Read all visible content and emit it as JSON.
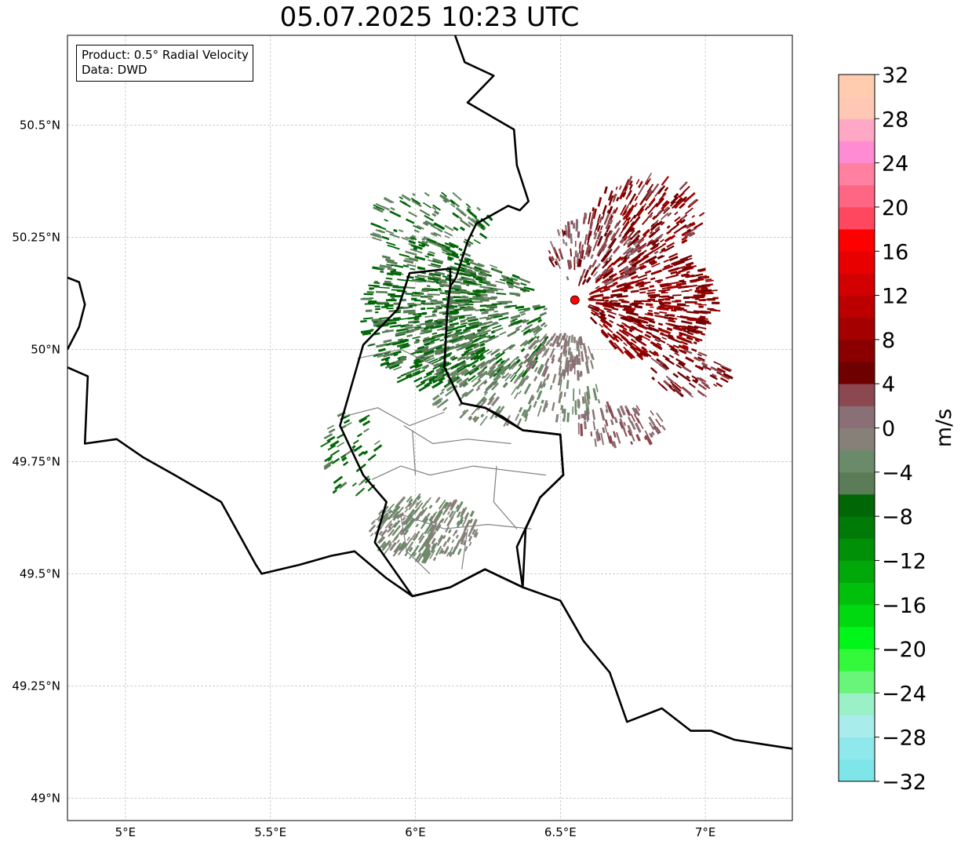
{
  "title": "05.07.2025 10:23 UTC",
  "info": {
    "product": "Product: 0.5° Radial Velocity",
    "data": "Data: DWD"
  },
  "map": {
    "lon_range": [
      4.8,
      7.3
    ],
    "lat_range": [
      48.95,
      50.7
    ],
    "x_ticks": [
      {
        "value": 5.0,
        "label": "5°E"
      },
      {
        "value": 5.5,
        "label": "5.5°E"
      },
      {
        "value": 6.0,
        "label": "6°E"
      },
      {
        "value": 6.5,
        "label": "6.5°E"
      },
      {
        "value": 7.0,
        "label": "7°E"
      }
    ],
    "y_ticks": [
      {
        "value": 49.0,
        "label": "49°N"
      },
      {
        "value": 49.25,
        "label": "49.25°N"
      },
      {
        "value": 49.5,
        "label": "49.5°N"
      },
      {
        "value": 49.75,
        "label": "49.75°N"
      },
      {
        "value": 50.0,
        "label": "50°N"
      },
      {
        "value": 50.25,
        "label": "50.25°N"
      },
      {
        "value": 50.5,
        "label": "50.5°N"
      }
    ],
    "radar_site": {
      "lon": 6.55,
      "lat": 50.11,
      "color": "#ff0000"
    },
    "country_borders": [
      [
        [
          6.12,
          50.73
        ],
        [
          6.17,
          50.64
        ],
        [
          6.27,
          50.61
        ],
        [
          6.18,
          50.55
        ],
        [
          6.34,
          50.49
        ],
        [
          6.35,
          50.41
        ],
        [
          6.39,
          50.33
        ],
        [
          6.36,
          50.31
        ],
        [
          6.32,
          50.32
        ],
        [
          6.21,
          50.28
        ],
        [
          6.18,
          50.24
        ],
        [
          6.14,
          50.16
        ],
        [
          6.12,
          50.14
        ],
        [
          6.11,
          50.09
        ],
        [
          6.1,
          49.96
        ],
        [
          6.16,
          49.88
        ],
        [
          6.24,
          49.87
        ],
        [
          6.3,
          49.85
        ],
        [
          6.37,
          49.82
        ],
        [
          6.5,
          49.81
        ],
        [
          6.51,
          49.72
        ],
        [
          6.43,
          49.67
        ],
        [
          6.38,
          49.6
        ],
        [
          6.37,
          49.47
        ]
      ],
      [
        [
          4.8,
          49.96
        ],
        [
          4.87,
          49.94
        ],
        [
          4.86,
          49.79
        ],
        [
          4.97,
          49.8
        ],
        [
          5.06,
          49.76
        ],
        [
          5.17,
          49.72
        ],
        [
          5.25,
          49.69
        ],
        [
          5.33,
          49.66
        ],
        [
          5.45,
          49.52
        ],
        [
          5.47,
          49.5
        ],
        [
          5.6,
          49.52
        ],
        [
          5.71,
          49.54
        ],
        [
          5.79,
          49.55
        ],
        [
          5.9,
          49.49
        ],
        [
          5.99,
          49.45
        ],
        [
          6.12,
          49.47
        ],
        [
          6.24,
          49.51
        ],
        [
          6.37,
          49.47
        ],
        [
          6.5,
          49.44
        ],
        [
          6.58,
          49.35
        ],
        [
          6.67,
          49.28
        ],
        [
          6.73,
          49.17
        ],
        [
          6.85,
          49.2
        ],
        [
          6.95,
          49.15
        ],
        [
          7.02,
          49.15
        ],
        [
          7.1,
          49.13
        ],
        [
          7.2,
          49.12
        ],
        [
          7.3,
          49.11
        ]
      ],
      [
        [
          4.8,
          50.16
        ],
        [
          4.84,
          50.15
        ],
        [
          4.86,
          50.1
        ],
        [
          4.84,
          50.05
        ],
        [
          4.8,
          50.0
        ]
      ]
    ],
    "luxembourg_outline": [
      [
        6.12,
        50.18
      ],
      [
        5.98,
        50.17
      ],
      [
        5.94,
        50.09
      ],
      [
        5.82,
        50.01
      ],
      [
        5.74,
        49.83
      ],
      [
        5.82,
        49.72
      ],
      [
        5.9,
        49.66
      ],
      [
        5.86,
        49.57
      ],
      [
        5.99,
        49.45
      ],
      [
        6.12,
        49.47
      ],
      [
        6.24,
        49.51
      ],
      [
        6.37,
        49.47
      ],
      [
        6.35,
        49.56
      ],
      [
        6.43,
        49.67
      ],
      [
        6.51,
        49.72
      ],
      [
        6.5,
        49.81
      ],
      [
        6.37,
        49.82
      ],
      [
        6.24,
        49.87
      ],
      [
        6.16,
        49.88
      ],
      [
        6.1,
        49.96
      ],
      [
        6.11,
        50.09
      ],
      [
        6.12,
        50.14
      ],
      [
        6.12,
        50.18
      ]
    ],
    "internal_boundaries": [
      [
        [
          5.8,
          49.98
        ],
        [
          5.95,
          50.0
        ],
        [
          6.08,
          49.96
        ]
      ],
      [
        [
          5.75,
          49.85
        ],
        [
          5.87,
          49.87
        ],
        [
          5.98,
          49.83
        ],
        [
          6.1,
          49.86
        ]
      ],
      [
        [
          5.96,
          49.83
        ],
        [
          6.06,
          49.79
        ],
        [
          6.18,
          49.8
        ],
        [
          6.33,
          49.79
        ]
      ],
      [
        [
          5.85,
          49.71
        ],
        [
          5.95,
          49.74
        ],
        [
          6.05,
          49.72
        ],
        [
          6.2,
          49.74
        ],
        [
          6.32,
          49.73
        ],
        [
          6.45,
          49.72
        ]
      ],
      [
        [
          5.86,
          49.62
        ],
        [
          5.96,
          49.63
        ],
        [
          6.1,
          49.6
        ],
        [
          6.25,
          49.61
        ],
        [
          6.4,
          49.6
        ]
      ],
      [
        [
          5.95,
          49.63
        ],
        [
          5.97,
          49.55
        ],
        [
          6.05,
          49.5
        ]
      ],
      [
        [
          6.18,
          49.6
        ],
        [
          6.16,
          49.51
        ]
      ],
      [
        [
          6.28,
          49.74
        ],
        [
          6.27,
          49.66
        ],
        [
          6.35,
          49.6
        ]
      ],
      [
        [
          6.0,
          49.72
        ],
        [
          5.99,
          49.82
        ]
      ]
    ]
  },
  "colorbar": {
    "label": "m/s",
    "vmin": -32,
    "vmax": 32,
    "step": 2,
    "tick_values": [
      -32,
      -28,
      -24,
      -20,
      -16,
      -12,
      -8,
      -4,
      0,
      4,
      8,
      12,
      16,
      20,
      24,
      28,
      32
    ],
    "tick_labels": [
      "−32",
      "−28",
      "−24",
      "−20",
      "−16",
      "−12",
      "−8",
      "−4",
      "0",
      "4",
      "8",
      "12",
      "16",
      "20",
      "24",
      "28",
      "32"
    ],
    "colors": [
      "#7ee5e8",
      "#8ee8ec",
      "#a8ecec",
      "#9cf0c8",
      "#68f57a",
      "#33f93a",
      "#00f518",
      "#00d810",
      "#00c00c",
      "#00a80a",
      "#009008",
      "#007a06",
      "#006606",
      "#5a7d58",
      "#6b8a6a",
      "#878078",
      "#8a6f76",
      "#8c4850",
      "#6e0000",
      "#8a0000",
      "#a40000",
      "#bc0000",
      "#d20000",
      "#e80000",
      "#ff0000",
      "#ff4860",
      "#ff6684",
      "#ff80a0",
      "#ff8cd2",
      "#ffa8c6",
      "#ffc8b4",
      "#ffccb0"
    ]
  }
}
